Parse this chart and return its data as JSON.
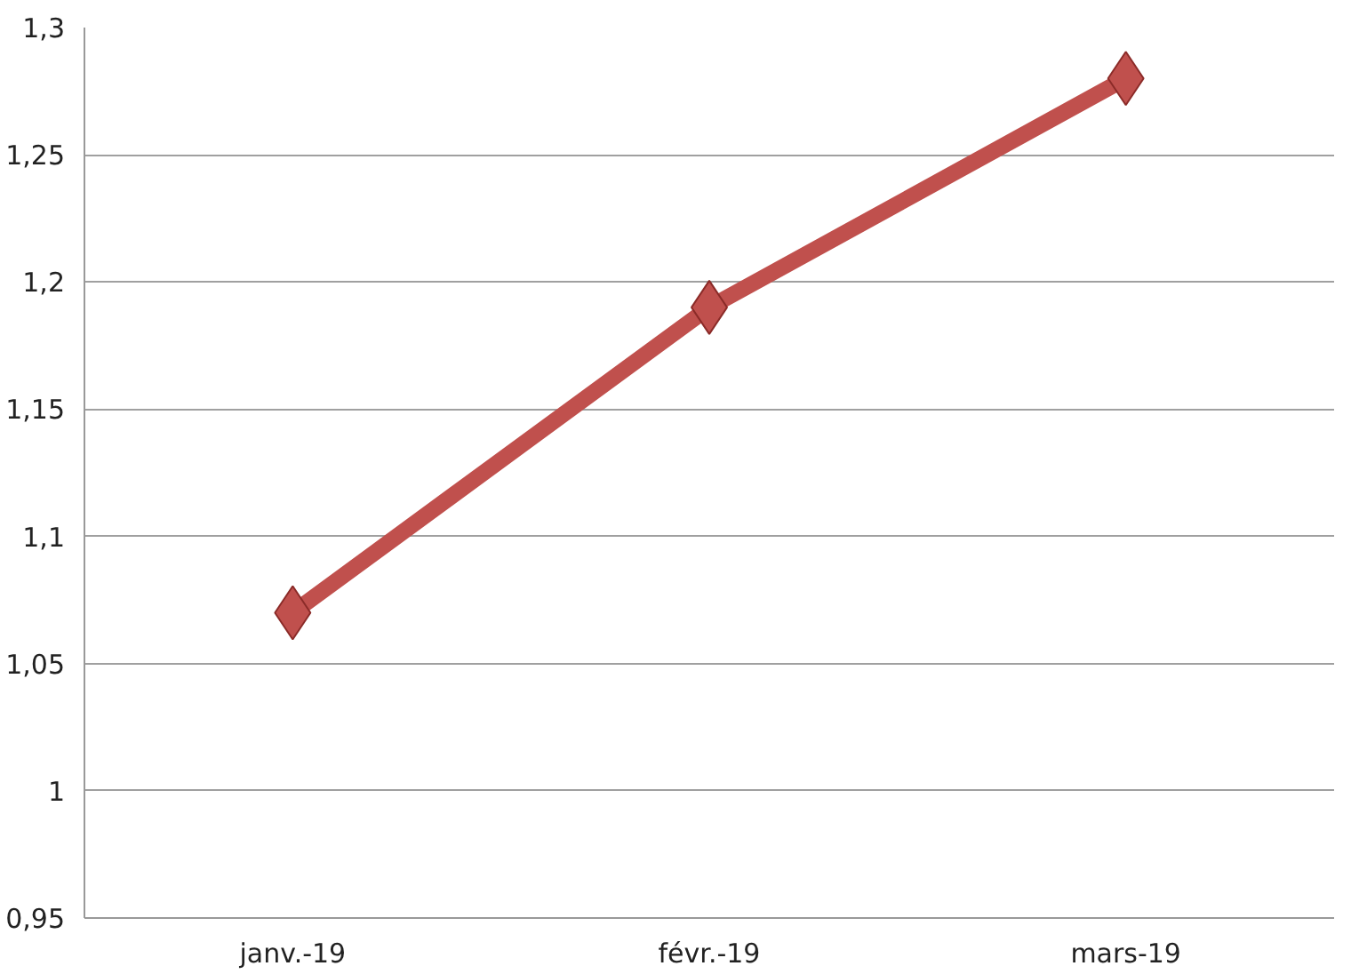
{
  "chart_data": {
    "type": "line",
    "categories": [
      "janv.-19",
      "févr.-19",
      "mars-19"
    ],
    "series": [
      {
        "color": "#c0504d",
        "values": [
          1.07,
          1.19,
          1.28
        ]
      }
    ],
    "ylim": [
      0.95,
      1.3
    ],
    "yticks": [
      {
        "value": 0.95,
        "label": "0,95"
      },
      1,
      {
        "value": 1.05,
        "label": "1,05"
      },
      {
        "value": 1.1,
        "label": "1,1"
      },
      {
        "value": 1.15,
        "label": "1,15"
      },
      {
        "value": 1.2,
        "label": "1,2"
      },
      {
        "value": 1.25,
        "label": "1,25"
      },
      {
        "value": 1.3,
        "label": "1,3"
      }
    ],
    "grid": "y",
    "marker": "diamond",
    "line_style": "solid"
  }
}
